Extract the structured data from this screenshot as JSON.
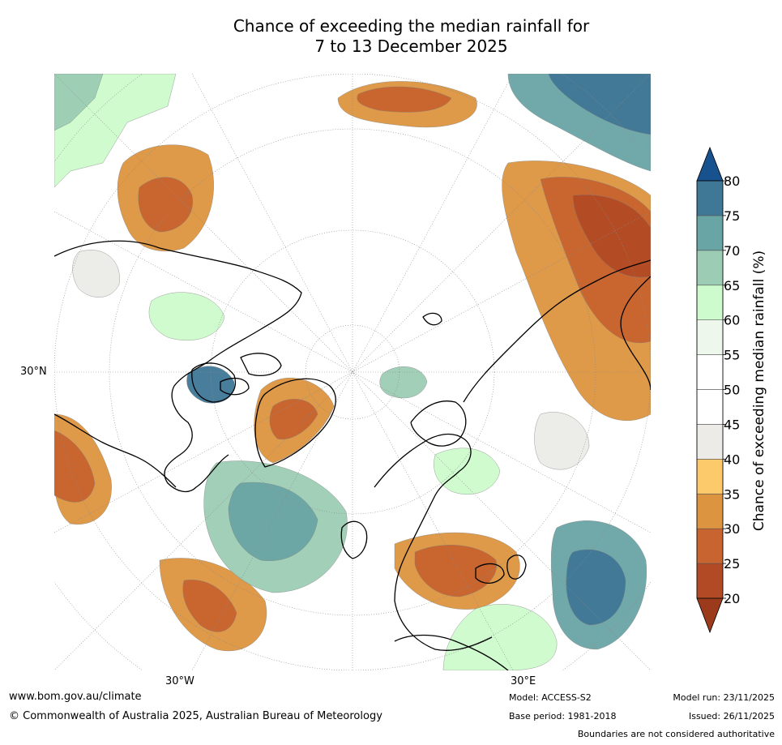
{
  "title": {
    "line1": "Chance of exceeding the median rainfall for",
    "line2": "7 to 13 December 2025"
  },
  "map": {
    "projection": "north-polar-stereographic",
    "lat_labels": [
      "30°N"
    ],
    "lon_labels": [
      "30°W",
      "30°E"
    ],
    "colors": {
      "p20": "#9c3a1c",
      "p25": "#b24b25",
      "p30": "#c8642f",
      "p35": "#dd9440",
      "p40": "#fdca6b",
      "p45": "#ecebe7",
      "p50": "#ffffff",
      "p55": "#ffffff",
      "p60": "#eef7ec",
      "p65": "#cdfbcd",
      "p70": "#9ccdb4",
      "p75": "#6aa5a6",
      "p80": "#3f7797",
      "p85": "#17518e"
    }
  },
  "colorbar": {
    "label": "Chance of exceeding median rainfall (%)",
    "ticks": [
      "20",
      "25",
      "30",
      "35",
      "40",
      "45",
      "50",
      "55",
      "60",
      "65",
      "70",
      "75",
      "80"
    ],
    "bins": [
      {
        "from": 20,
        "to": 25,
        "color": "#b24b25"
      },
      {
        "from": 25,
        "to": 30,
        "color": "#c8642f"
      },
      {
        "from": 30,
        "to": 35,
        "color": "#dd9440"
      },
      {
        "from": 35,
        "to": 40,
        "color": "#fdca6b"
      },
      {
        "from": 40,
        "to": 45,
        "color": "#ecebe7"
      },
      {
        "from": 45,
        "to": 50,
        "color": "#ffffff"
      },
      {
        "from": 50,
        "to": 55,
        "color": "#ffffff"
      },
      {
        "from": 55,
        "to": 60,
        "color": "#eef7ec"
      },
      {
        "from": 60,
        "to": 65,
        "color": "#cdfbcd"
      },
      {
        "from": 65,
        "to": 70,
        "color": "#9ccdb4"
      },
      {
        "from": 70,
        "to": 75,
        "color": "#6aa5a6"
      },
      {
        "from": 75,
        "to": 80,
        "color": "#3f7797"
      }
    ],
    "under_color": "#9c3a1c",
    "over_color": "#17518e"
  },
  "footer": {
    "website": "www.bom.gov.au/climate",
    "copyright": "© Commonwealth of Australia 2025, Australian Bureau of Meteorology",
    "model": "Model: ACCESS-S2",
    "base_period": "Base period: 1981-2018",
    "model_run": "Model run: 23/11/2025",
    "issued": "Issued: 26/11/2025",
    "disclaimer": "Boundaries are not considered authoritative"
  }
}
